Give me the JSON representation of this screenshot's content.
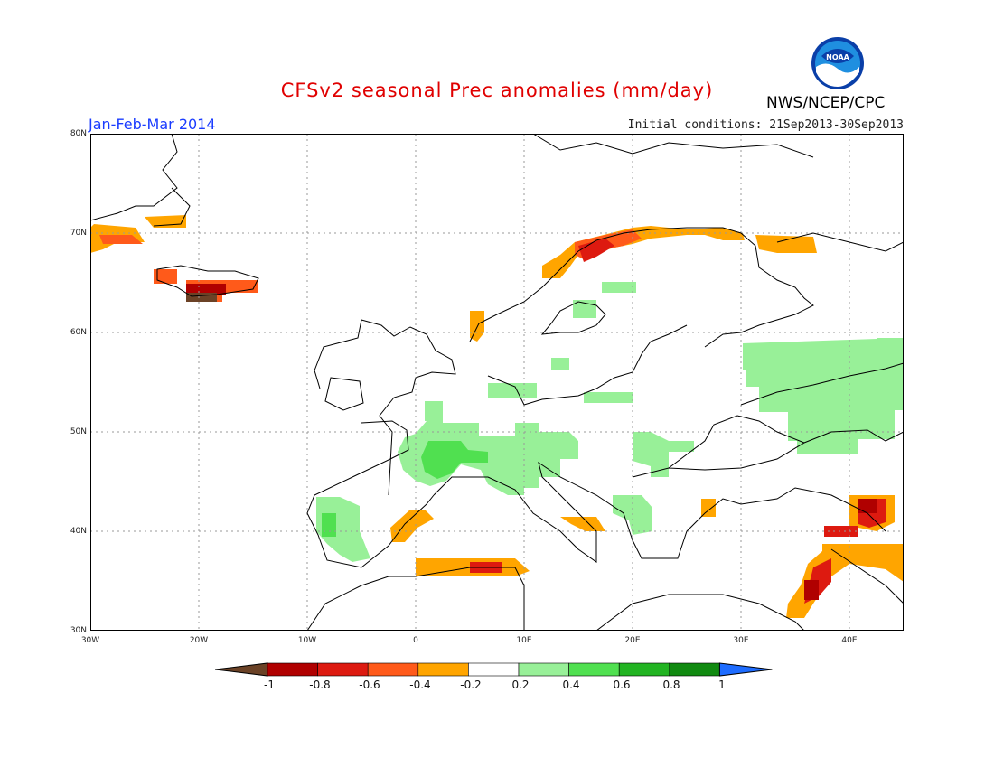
{
  "header": {
    "title": "CFSv2 seasonal Prec anomalies (mm/day)",
    "season": "Jan-Feb-Mar 2014",
    "initial_conditions": "Initial conditions: 21Sep2013-30Sep2013",
    "agency": "NWS/NCEP/CPC",
    "logo_text": "NOAA"
  },
  "axes": {
    "lat_labels": [
      "80N",
      "70N",
      "60N",
      "50N",
      "40N",
      "30N"
    ],
    "lon_labels": [
      "30W",
      "20W",
      "10W",
      "0",
      "10E",
      "20E",
      "30E",
      "40E"
    ]
  },
  "legend": {
    "tick_labels": [
      "-1",
      "-0.8",
      "-0.6",
      "-0.4",
      "-0.2",
      "0.2",
      "0.4",
      "0.6",
      "0.8",
      "1"
    ],
    "colors": [
      "#6b4226",
      "#b00000",
      "#dd1a10",
      "#ff5a1a",
      "#ffa500",
      "#ffffff",
      "#98f098",
      "#50e050",
      "#22b422",
      "#108a10",
      "#1e6cff"
    ]
  },
  "colors": {
    "accent_title": "#e00000",
    "season_blue": "#1a3cff"
  },
  "anomaly_regions": [
    {
      "name": "Norway coast",
      "value": -0.4
    },
    {
      "name": "Northern Norway",
      "value": -0.8
    },
    {
      "name": "Iceland south",
      "value": -0.8
    },
    {
      "name": "Iceland interior",
      "value": -1.0
    },
    {
      "name": "East Greenland",
      "value": -0.6
    },
    {
      "name": "Western Russia",
      "value": 0.2
    },
    {
      "name": "Central Europe",
      "value": 0.4
    },
    {
      "name": "Alps",
      "value": 0.4
    },
    {
      "name": "Iberia west",
      "value": 0.4
    },
    {
      "name": "North Africa coast",
      "value": -0.4
    },
    {
      "name": "Caucasus",
      "value": -0.8
    },
    {
      "name": "Levant",
      "value": -0.6
    }
  ]
}
